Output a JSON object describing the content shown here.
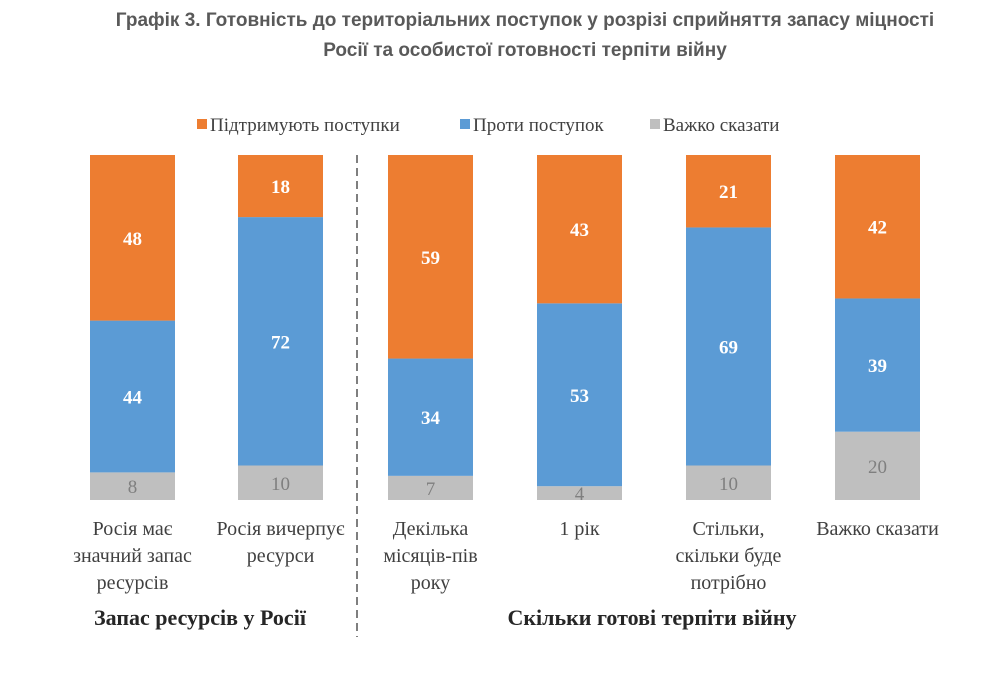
{
  "chart_data": {
    "type": "bar",
    "stacked": true,
    "title_line1": "Графік 3. Готовність до територіальних поступок у розрізі сприйняття запасу міцності",
    "title_line2": "Росії та особистої готовності терпіти війну",
    "legend": {
      "placement": "top",
      "entries": [
        "Підтримують поступки",
        "Проти поступок",
        "Важко сказати"
      ]
    },
    "categories": [
      [
        "Росія має",
        "значний запас",
        "ресурсів"
      ],
      [
        "Росія вичерпує",
        "ресурси"
      ],
      [
        "Декілька",
        "місяців-пів",
        "року"
      ],
      [
        "1 рік"
      ],
      [
        "Стільки,",
        "скільки буде",
        "потрібно"
      ],
      [
        "Важко сказати"
      ]
    ],
    "groups": [
      {
        "label": "Запас ресурсів у Росії",
        "categories": [
          0,
          1
        ]
      },
      {
        "label": "Скільки готові терпіти війну",
        "categories": [
          2,
          3,
          4,
          5
        ]
      }
    ],
    "series": [
      {
        "name": "Підтримують поступки",
        "color": "#ED7D31",
        "values": [
          48,
          18,
          59,
          43,
          21,
          42
        ]
      },
      {
        "name": "Проти поступок",
        "color": "#5B9BD5",
        "values": [
          44,
          72,
          34,
          53,
          69,
          39
        ]
      },
      {
        "name": "Важко сказати",
        "color": "#BFBFBF",
        "values": [
          8,
          10,
          7,
          4,
          10,
          20
        ]
      }
    ],
    "ylim": [
      0,
      100
    ],
    "grid": false
  }
}
